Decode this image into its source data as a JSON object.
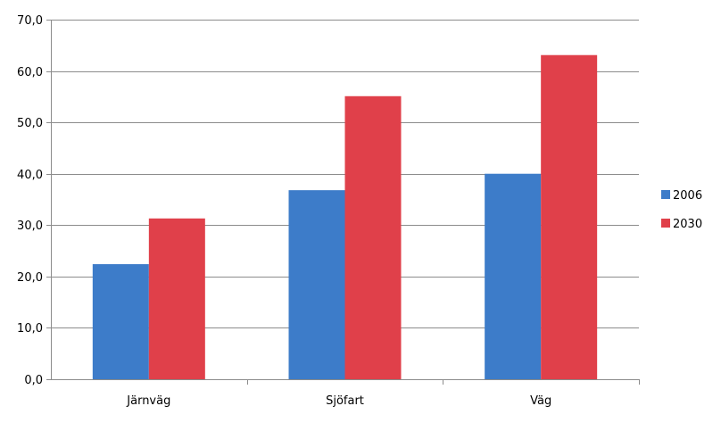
{
  "chart_data": {
    "type": "bar",
    "title": "",
    "xlabel": "",
    "ylabel": "",
    "categories": [
      "Järnväg",
      "Sjöfart",
      "Väg"
    ],
    "series": [
      {
        "name": "2006",
        "color": "#3d7cc9",
        "values": [
          22.4,
          36.8,
          40.0
        ]
      },
      {
        "name": "2030",
        "color": "#e0404a",
        "values": [
          31.3,
          55.1,
          63.1
        ]
      }
    ],
    "ylim": [
      0,
      70
    ],
    "yticks": [
      0,
      10,
      20,
      30,
      40,
      50,
      60,
      70
    ],
    "ytick_labels": [
      "0,0",
      "10,0",
      "20,0",
      "30,0",
      "40,0",
      "50,0",
      "60,0",
      "70,0"
    ],
    "grid": true,
    "legend_position": "right",
    "colors": {
      "gridline": "#8c8c8c",
      "axis": "#8c8c8c",
      "background": "#ffffff"
    }
  }
}
